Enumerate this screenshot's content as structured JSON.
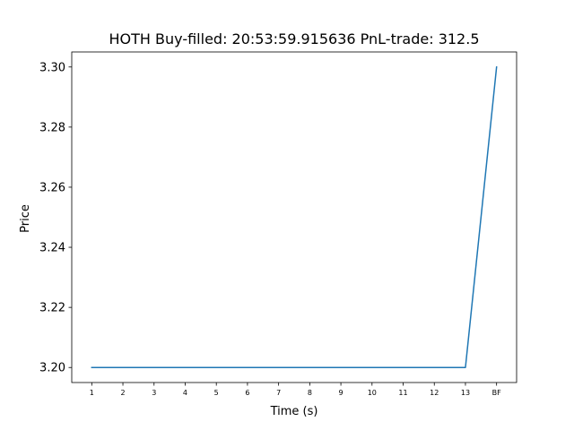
{
  "chart_data": {
    "type": "line",
    "title": "HOTH  Buy-filled:  20:53:59.915636  PnL-trade:  312.5",
    "xlabel": "Time (s)",
    "ylabel": "Price",
    "categories": [
      "1",
      "2",
      "3",
      "4",
      "5",
      "6",
      "7",
      "8",
      "9",
      "10",
      "11",
      "12",
      "13",
      "BF"
    ],
    "series": [
      {
        "values": [
          3.2,
          3.2,
          3.2,
          3.2,
          3.2,
          3.2,
          3.2,
          3.2,
          3.2,
          3.2,
          3.2,
          3.2,
          3.2,
          3.3
        ],
        "color": "#1f77b4"
      }
    ],
    "ylim": [
      3.195,
      3.305
    ],
    "yticks": [
      3.2,
      3.22,
      3.24,
      3.26,
      3.28,
      3.3
    ],
    "ytick_labels": [
      "3.20",
      "3.22",
      "3.24",
      "3.26",
      "3.28",
      "3.30"
    ],
    "grid": false,
    "legend": "none"
  }
}
